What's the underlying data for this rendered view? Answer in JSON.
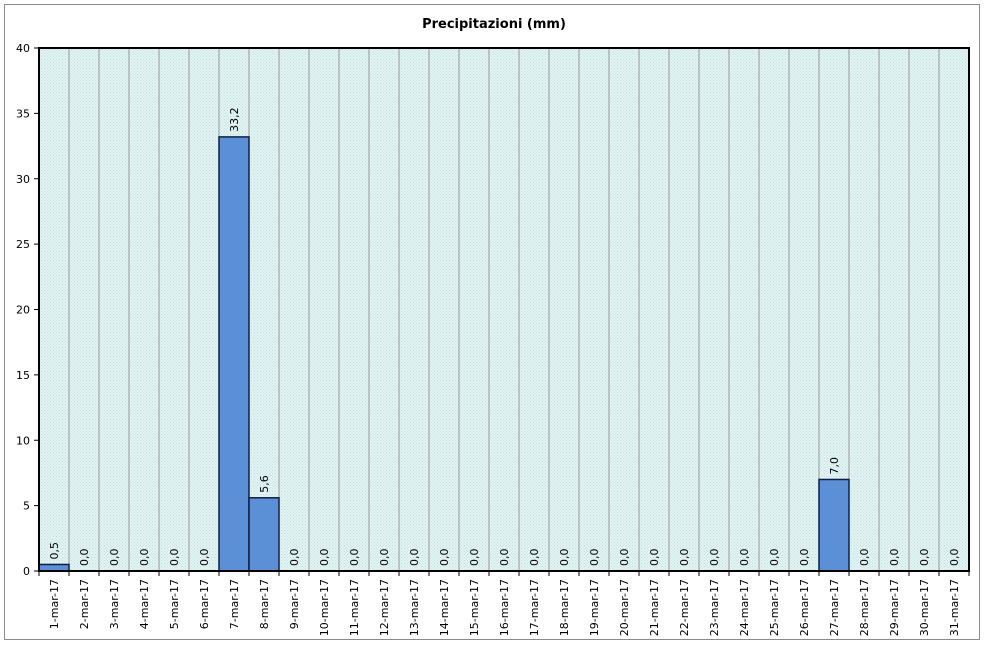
{
  "chart_data": {
    "type": "bar",
    "title": "Precipitazioni (mm)",
    "xlabel": "",
    "ylabel": "",
    "ylim": [
      0,
      40
    ],
    "yticks": [
      0,
      5,
      10,
      15,
      20,
      25,
      30,
      35,
      40
    ],
    "grid": "vertical",
    "categories": [
      "1-mar-17",
      "2-mar-17",
      "3-mar-17",
      "4-mar-17",
      "5-mar-17",
      "6-mar-17",
      "7-mar-17",
      "8-mar-17",
      "9-mar-17",
      "10-mar-17",
      "11-mar-17",
      "12-mar-17",
      "13-mar-17",
      "14-mar-17",
      "15-mar-17",
      "16-mar-17",
      "17-mar-17",
      "18-mar-17",
      "19-mar-17",
      "20-mar-17",
      "21-mar-17",
      "22-mar-17",
      "23-mar-17",
      "24-mar-17",
      "25-mar-17",
      "26-mar-17",
      "27-mar-17",
      "28-mar-17",
      "29-mar-17",
      "30-mar-17",
      "31-mar-17"
    ],
    "values": [
      0.5,
      0,
      0,
      0,
      0,
      0,
      33.2,
      5.6,
      0,
      0,
      0,
      0,
      0,
      0,
      0,
      0,
      0,
      0,
      0,
      0,
      0,
      0,
      0,
      0,
      0,
      0,
      7.0,
      0,
      0,
      0,
      0
    ],
    "data_labels": [
      "0,5",
      "0,0",
      "0,0",
      "0,0",
      "0,0",
      "0,0",
      "33,2",
      "5,6",
      "0,0",
      "0,0",
      "0,0",
      "0,0",
      "0,0",
      "0,0",
      "0,0",
      "0,0",
      "0,0",
      "0,0",
      "0,0",
      "0,0",
      "0,0",
      "0,0",
      "0,0",
      "0,0",
      "0,0",
      "0,0",
      "7,0",
      "0,0",
      "0,0",
      "0,0",
      "0,0"
    ],
    "colors": {
      "bar_fill": "#5b8fd6",
      "bar_stroke": "#0f1f44",
      "plot_bg": "#e4f3f3",
      "plot_pattern": "#bfe0e0",
      "grid": "#9a9a9a",
      "frame": "#8c8c8c"
    }
  }
}
